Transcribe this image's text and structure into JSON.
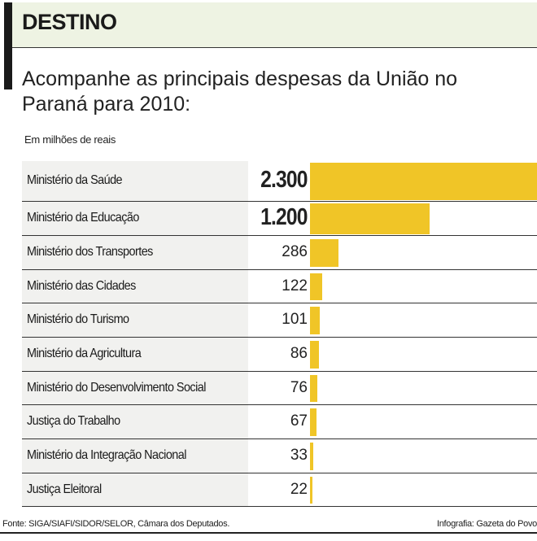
{
  "header": {
    "title": "DESTINO",
    "subtitle": "Acompanhe as principais despesas da União no Paraná para 2010:",
    "unit": "Em milhões de reais"
  },
  "chart_data": {
    "type": "bar",
    "orientation": "horizontal",
    "title": "DESTINO",
    "subtitle": "Acompanhe as principais despesas da União no Paraná para 2010:",
    "unit_label": "Em milhões de reais",
    "categories": [
      "Ministério da Saúde",
      "Ministério da Educação",
      "Ministério dos Transportes",
      "Ministério das Cidades",
      "Ministério do Turismo",
      "Ministério da Agricultura",
      "Ministério do Desenvolvimento Social",
      "Justiça do Trabalho",
      "Ministério da Integração Nacional",
      "Justiça Eleitoral"
    ],
    "values": [
      2300,
      1200,
      286,
      122,
      101,
      86,
      76,
      67,
      33,
      22
    ],
    "value_labels": [
      "2.300",
      "1.200",
      "286",
      "122",
      "101",
      "86",
      "76",
      "67",
      "33",
      "22"
    ],
    "bar_color": "#f0c527"
  },
  "footer": {
    "source": "Fonte: SIGA/SIAFI/SIDOR/SELOR, Câmara dos Deputados.",
    "credit": "Infografia: Gazeta do Povo"
  }
}
